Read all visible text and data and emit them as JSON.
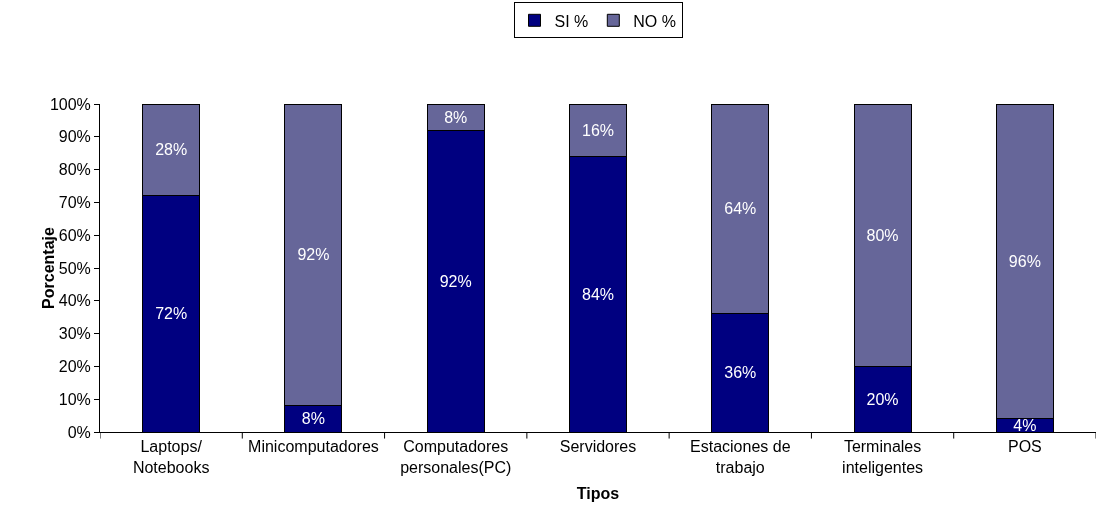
{
  "chart_data": {
    "type": "bar",
    "stacked": true,
    "xlabel": "Tipos",
    "ylabel": "Porcentaje",
    "categories": [
      "Laptops/\nNotebooks",
      "Minicomputadores",
      "Computadores\npersonales(PC)",
      "Servidores",
      "Estaciones de\ntrabajo",
      "Terminales\ninteligentes",
      "POS"
    ],
    "series": [
      {
        "name": "SI %",
        "color": "#000080",
        "values": [
          72,
          8,
          92,
          84,
          36,
          20,
          4
        ],
        "value_labels": [
          "72%",
          "8%",
          "92%",
          "84%",
          "36%",
          "20%",
          "4%"
        ]
      },
      {
        "name": "NO %",
        "color": "#666699",
        "values": [
          28,
          92,
          8,
          16,
          64,
          80,
          96
        ],
        "value_labels": [
          "28%",
          "92%",
          "8%",
          "16%",
          "64%",
          "80%",
          "96%"
        ]
      }
    ],
    "ylim": [
      0,
      100
    ],
    "yticks": [
      {
        "value": 0,
        "label": "0%"
      },
      {
        "value": 10,
        "label": "10%"
      },
      {
        "value": 20,
        "label": "20%"
      },
      {
        "value": 30,
        "label": "30%"
      },
      {
        "value": 40,
        "label": "40%"
      },
      {
        "value": 50,
        "label": "50%"
      },
      {
        "value": 60,
        "label": "60%"
      },
      {
        "value": 70,
        "label": "70%"
      },
      {
        "value": 80,
        "label": "80%"
      },
      {
        "value": 90,
        "label": "90%"
      },
      {
        "value": 100,
        "label": "100%"
      }
    ],
    "grid": false,
    "legend": "top"
  }
}
